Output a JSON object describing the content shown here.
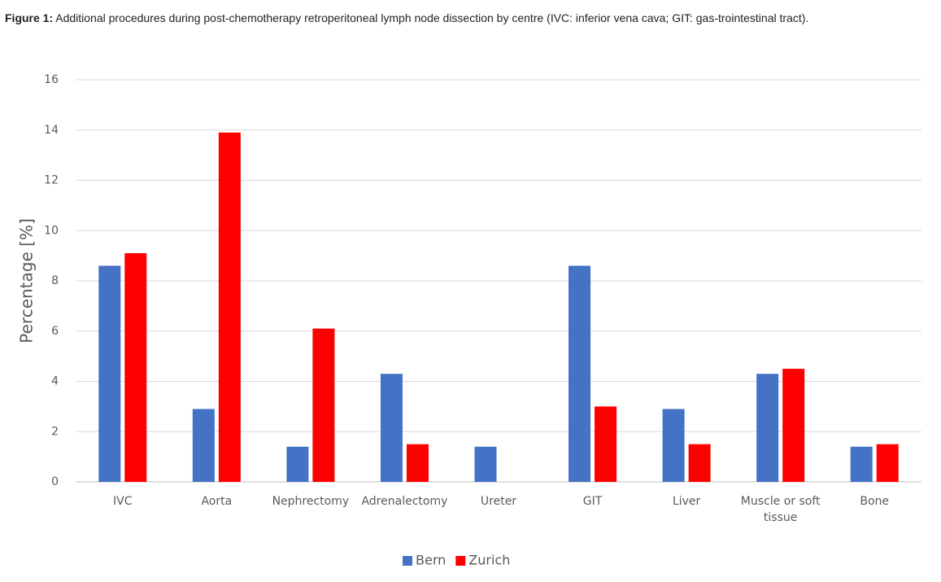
{
  "caption_label": "Figure 1:",
  "caption": "Additional procedures during post-chemotherapy retroperitoneal lymph node dissection by centre (IVC: inferior vena cava; GIT: gas-trointestinal tract).",
  "chart_data": {
    "type": "bar",
    "y_label": "Percentage [%]",
    "categories": [
      "IVC",
      "Aorta",
      "Nephrectomy",
      "Adrenalectomy",
      "Ureter",
      "GIT",
      "Liver",
      "Muscle or soft tissue",
      "Bone"
    ],
    "series": [
      {
        "name": "Bern",
        "color": "#4472c4",
        "values": [
          8.6,
          2.9,
          1.4,
          4.3,
          1.4,
          8.6,
          2.9,
          4.3,
          1.4
        ]
      },
      {
        "name": "Zurich",
        "color": "#ff0000",
        "values": [
          9.1,
          13.9,
          6.1,
          1.5,
          0,
          3.0,
          1.5,
          4.5,
          1.5
        ]
      }
    ],
    "ylim": [
      0,
      16
    ],
    "yticks": [
      0,
      2,
      4,
      6,
      8,
      10,
      12,
      14,
      16
    ],
    "grid": true,
    "legend": "bottom"
  }
}
